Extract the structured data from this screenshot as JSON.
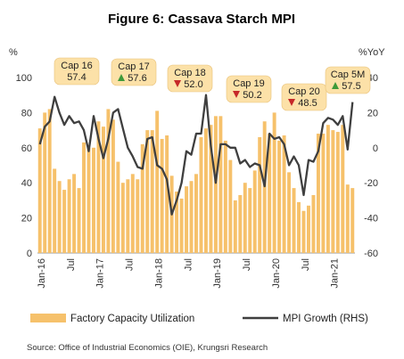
{
  "chart_data": {
    "type": "bar+line",
    "title": "Figure 6: Cassava Starch MPI",
    "left_axis_unit": "%",
    "right_axis_unit": "%YoY",
    "left_ylim": [
      0,
      100
    ],
    "left_ticks": [
      0,
      20,
      40,
      60,
      80,
      100
    ],
    "right_ylim": [
      -60,
      40
    ],
    "right_ticks": [
      -60,
      -40,
      -20,
      0,
      20,
      40
    ],
    "x_tick_labels": [
      {
        "index": 0,
        "label": "Jan-16"
      },
      {
        "index": 6,
        "label": "Jul"
      },
      {
        "index": 12,
        "label": "Jan-17"
      },
      {
        "index": 18,
        "label": "Jul"
      },
      {
        "index": 24,
        "label": "Jan-18"
      },
      {
        "index": 30,
        "label": "Jul"
      },
      {
        "index": 36,
        "label": "Jan-19"
      },
      {
        "index": 42,
        "label": "Jul"
      },
      {
        "index": 48,
        "label": "Jan-20"
      },
      {
        "index": 54,
        "label": "Jul"
      },
      {
        "index": 60,
        "label": "Jan-21"
      }
    ],
    "series": [
      {
        "name": "Factory Capacity Utilization",
        "type": "bar",
        "axis": "left",
        "color": "#F6C16B",
        "values": [
          71,
          80,
          82,
          48,
          41,
          36,
          42,
          45,
          37,
          63,
          60,
          60,
          75,
          72,
          82,
          76,
          52,
          40,
          42,
          45,
          42,
          62,
          70,
          70,
          81,
          65,
          67,
          44,
          35,
          31,
          38,
          41,
          45,
          66,
          71,
          73,
          78,
          78,
          64,
          53,
          30,
          33,
          40,
          37,
          47,
          66,
          75,
          68,
          80,
          64,
          67,
          46,
          37,
          29,
          24,
          27,
          33,
          68,
          68,
          73,
          70,
          69,
          73,
          39,
          37
        ]
      },
      {
        "name": "MPI Growth (RHS)",
        "type": "line",
        "axis": "right",
        "color": "#3F3F3F",
        "values": [
          2,
          12,
          15,
          29,
          20,
          13,
          18,
          14,
          15,
          10,
          -2,
          18,
          5,
          -6,
          5,
          20,
          22,
          11,
          0,
          -5,
          -11,
          -12,
          5,
          6,
          -10,
          -12,
          -18,
          -38,
          -30,
          -20,
          -2,
          -4,
          8,
          8,
          30,
          1,
          -20,
          2,
          2,
          0,
          0,
          -9,
          -7,
          -11,
          -9,
          -10,
          -22,
          8,
          5,
          6,
          2,
          -10,
          -5,
          -10,
          -27,
          -7,
          -8,
          -2,
          14,
          17,
          16,
          13,
          18,
          -1,
          26
        ]
      }
    ],
    "annotations": [
      {
        "label": "Cap 16",
        "value": "57.4",
        "marker": "none",
        "index": 4
      },
      {
        "label": "Cap 17",
        "value": "57.6",
        "marker": "up",
        "index": 17
      },
      {
        "label": "Cap 18",
        "value": "52.0",
        "marker": "down",
        "index": 29
      },
      {
        "label": "Cap 19",
        "value": "50.2",
        "marker": "down",
        "index": 42
      },
      {
        "label": "Cap 20",
        "value": "48.5",
        "marker": "down",
        "index": 53
      },
      {
        "label": "Cap 5M",
        "value": "57.5",
        "marker": "up",
        "index": 63
      }
    ],
    "legend_position": "bottom",
    "source": "Source: Office of Industrial Economics (OIE), Krungsri Research"
  },
  "colors": {
    "bar": "#F6C16B",
    "line": "#3F3F3F",
    "annotation_fill": "#FCE1A8",
    "up_marker": "#3E9A3A",
    "down_marker": "#C62828"
  }
}
